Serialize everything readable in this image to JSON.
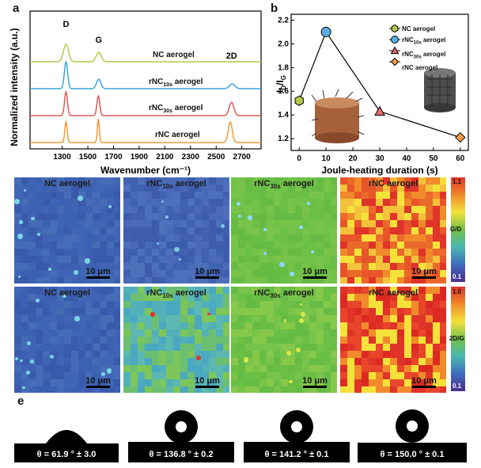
{
  "panel_a": {
    "letter": "a",
    "chart_data": {
      "type": "line",
      "xlabel": "Wavenumber (cm⁻¹)",
      "ylabel": "Normalized intensity (a.u.)",
      "xlim": [
        1050,
        2850
      ],
      "xticks": [
        1300,
        1500,
        1700,
        1900,
        2100,
        2300,
        2500,
        2700
      ],
      "peak_labels": [
        {
          "text": "D",
          "x": 1330
        },
        {
          "text": "G",
          "x": 1585
        },
        {
          "text": "2D",
          "x": 2620
        }
      ],
      "series": [
        {
          "name": "NC aerogel",
          "color": "#b4c84a",
          "peaks": [
            {
              "x": 1330,
              "h": 0.55,
              "w": 28
            },
            {
              "x": 1585,
              "h": 0.3,
              "w": 28
            },
            {
              "x": 2630,
              "h": 0.0,
              "w": 30
            }
          ]
        },
        {
          "name": "rNC10s aerogel",
          "color": "#3aa6d8",
          "peaks": [
            {
              "x": 1330,
              "h": 0.85,
              "w": 18
            },
            {
              "x": 1585,
              "h": 0.3,
              "w": 24
            },
            {
              "x": 2625,
              "h": 0.15,
              "w": 30
            }
          ]
        },
        {
          "name": "rNC30s aerogel",
          "color": "#e05a5a",
          "peaks": [
            {
              "x": 1330,
              "h": 0.75,
              "w": 16
            },
            {
              "x": 1582,
              "h": 0.62,
              "w": 16
            },
            {
              "x": 2620,
              "h": 0.42,
              "w": 26
            }
          ]
        },
        {
          "name": "rNC aerogel",
          "color": "#f39a3c",
          "peaks": [
            {
              "x": 1330,
              "h": 0.65,
              "w": 13
            },
            {
              "x": 1582,
              "h": 0.75,
              "w": 11
            },
            {
              "x": 2610,
              "h": 0.65,
              "w": 22
            }
          ]
        }
      ]
    },
    "series_labels": [
      {
        "main": "NC aerogel",
        "sub": "",
        "tail": ""
      },
      {
        "main": "rNC",
        "sub": "10s",
        "tail": " aerogel"
      },
      {
        "main": "rNC",
        "sub": "30s",
        "tail": " aerogel"
      },
      {
        "main": "rNC aerogel",
        "sub": "",
        "tail": ""
      }
    ]
  },
  "panel_b": {
    "letter": "b",
    "chart_data": {
      "type": "line",
      "xlabel": "Joule-heating duration (s)",
      "ylabel": "ID/IG",
      "ylabel_main": "I",
      "ylabel_sub1": "D",
      "ylabel_mid": "/I",
      "ylabel_sub2": "G",
      "xlim": [
        -3,
        63
      ],
      "ylim": [
        1.1,
        2.25
      ],
      "xticks": [
        0,
        10,
        20,
        30,
        40,
        50,
        60
      ],
      "yticks": [
        1.2,
        1.4,
        1.6,
        1.8,
        2.0,
        2.2
      ],
      "x": [
        0,
        10,
        30,
        60
      ],
      "y": [
        1.52,
        2.1,
        1.43,
        1.21
      ],
      "markers": [
        "hexagon",
        "circle",
        "triangle",
        "diamond"
      ],
      "colors": [
        "#b4c84a",
        "#5aaee0",
        "#e36b6b",
        "#f19a4a"
      ]
    },
    "legend": [
      {
        "main": "NC aerogel",
        "sub": "",
        "tail": ""
      },
      {
        "main": "rNC",
        "sub": "10s",
        "tail": " aerogel"
      },
      {
        "main": "rNC",
        "sub": "30s",
        "tail": " aerogel"
      },
      {
        "main": "rNC aerogel",
        "sub": "",
        "tail": ""
      }
    ]
  },
  "panel_c": {
    "letter": "c",
    "colorbar": {
      "top": "1.1",
      "mid": "G/D",
      "bottom": "0.1"
    },
    "maps": [
      {
        "main": "NC aerogel",
        "sub": "",
        "tail": "",
        "scale": "10 μm"
      },
      {
        "main": "rNC",
        "sub": "10s",
        "tail": " aerogel",
        "scale": "10 μm"
      },
      {
        "main": "rNC",
        "sub": "30s",
        "tail": " aerogel",
        "scale": "10 μm"
      },
      {
        "main": "rNC aerogel",
        "sub": "",
        "tail": "",
        "scale": "10 μm"
      }
    ]
  },
  "panel_d": {
    "letter": "d",
    "colorbar": {
      "top": "1.0",
      "mid": "2D/G",
      "bottom": "0.1"
    },
    "maps": [
      {
        "main": "NC aerogel",
        "sub": "",
        "tail": "",
        "scale": "10 μm"
      },
      {
        "main": "rNC",
        "sub": "10s",
        "tail": " aerogel",
        "scale": "10 μm"
      },
      {
        "main": "rNC",
        "sub": "30s",
        "tail": " aerogel",
        "scale": "10 μm"
      },
      {
        "main": "rNC aerogel",
        "sub": "",
        "tail": "",
        "scale": "10 μm"
      }
    ]
  },
  "panel_e": {
    "letter": "e",
    "angles": [
      "θ = 61.9 ° ± 3.0",
      "θ = 136.8 ° ± 0.2",
      "θ = 141.2 ° ± 0.1",
      "θ = 150.0 ° ± 0.1"
    ]
  },
  "colors": {
    "map_blue": "#3e5fb0",
    "map_teal": "#5cb8b0",
    "map_green": "#6cbf45",
    "map_red": "#e03a2a",
    "map_yellow": "#f4e23a"
  }
}
